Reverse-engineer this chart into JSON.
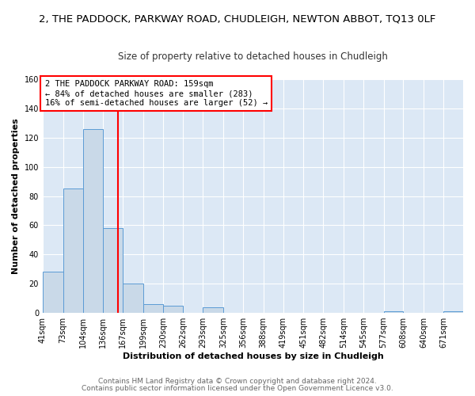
{
  "title": "2, THE PADDOCK, PARKWAY ROAD, CHUDLEIGH, NEWTON ABBOT, TQ13 0LF",
  "subtitle": "Size of property relative to detached houses in Chudleigh",
  "xlabel": "Distribution of detached houses by size in Chudleigh",
  "ylabel": "Number of detached properties",
  "bin_edges": [
    41,
    73,
    104,
    136,
    167,
    199,
    230,
    262,
    293,
    325,
    356,
    388,
    419,
    451,
    482,
    514,
    545,
    577,
    608,
    640,
    671
  ],
  "bin_labels": [
    "41sqm",
    "73sqm",
    "104sqm",
    "136sqm",
    "167sqm",
    "199sqm",
    "230sqm",
    "262sqm",
    "293sqm",
    "325sqm",
    "356sqm",
    "388sqm",
    "419sqm",
    "451sqm",
    "482sqm",
    "514sqm",
    "545sqm",
    "577sqm",
    "608sqm",
    "640sqm",
    "671sqm"
  ],
  "counts": [
    28,
    85,
    126,
    58,
    20,
    6,
    5,
    0,
    4,
    0,
    0,
    0,
    0,
    0,
    0,
    0,
    0,
    1,
    0,
    0,
    1
  ],
  "bar_color": "#c9d9e8",
  "bar_edge_color": "#5b9bd5",
  "vline_x": 159,
  "vline_color": "red",
  "annotation_text": "2 THE PADDOCK PARKWAY ROAD: 159sqm\n← 84% of detached houses are smaller (283)\n16% of semi-detached houses are larger (52) →",
  "annotation_box_color": "white",
  "annotation_box_edge_color": "red",
  "ylim": [
    0,
    160
  ],
  "yticks": [
    0,
    20,
    40,
    60,
    80,
    100,
    120,
    140,
    160
  ],
  "footer_line1": "Contains HM Land Registry data © Crown copyright and database right 2024.",
  "footer_line2": "Contains public sector information licensed under the Open Government Licence v3.0.",
  "bg_color": "#ffffff",
  "plot_bg_color": "#dce8f5",
  "title_fontsize": 9.5,
  "subtitle_fontsize": 8.5,
  "axis_label_fontsize": 8,
  "tick_fontsize": 7,
  "annotation_fontsize": 7.5,
  "footer_fontsize": 6.5
}
